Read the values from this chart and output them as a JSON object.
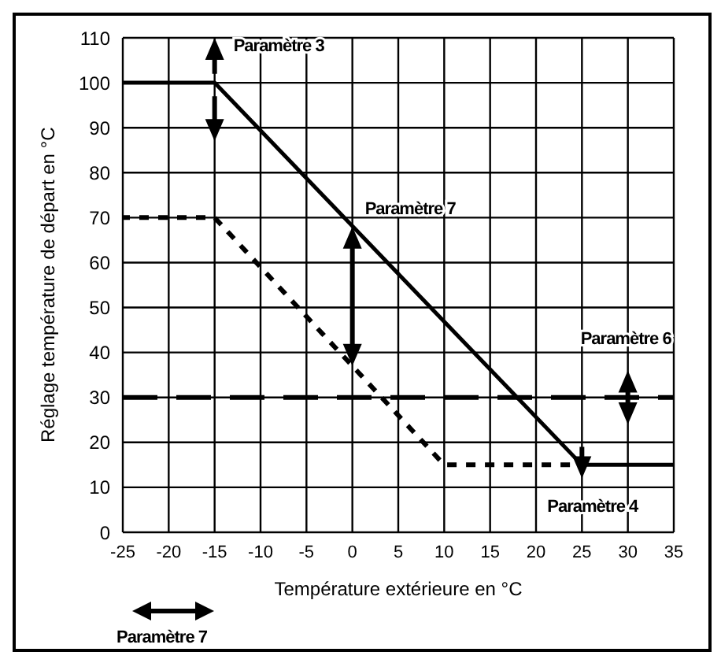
{
  "chart_data": {
    "type": "line",
    "xlabel": "Température extérieure en °C",
    "ylabel": "Réglage température de départ en °C",
    "xlim": [
      -25,
      35
    ],
    "xticks": [
      -25,
      -20,
      -15,
      -10,
      -5,
      0,
      5,
      10,
      15,
      20,
      25,
      30,
      35
    ],
    "ylim": [
      0,
      110
    ],
    "yticks": [
      0,
      10,
      20,
      30,
      40,
      50,
      60,
      70,
      80,
      90,
      100,
      110
    ],
    "grid": true,
    "legend": false,
    "marker": "none",
    "series": [
      {
        "color": "#000000",
        "line_style": "solid",
        "x": [
          -25,
          -15,
          25,
          35
        ],
        "values": [
          100,
          100,
          15,
          15
        ]
      },
      {
        "color": "#000000",
        "line_style": "dotted",
        "x": [
          -25,
          -15,
          10,
          25
        ],
        "values": [
          70,
          70,
          15,
          15
        ]
      }
    ],
    "ref_lines": [
      {
        "axis": "y",
        "value": 30,
        "color": "#000000",
        "line_style": "dashed"
      }
    ],
    "annotations": [
      {
        "text": "Paramètre 3",
        "x": -15,
        "y": 100
      },
      {
        "text": "Paramètre 7",
        "x": 0,
        "y": 70
      },
      {
        "text": "Paramètre 6",
        "x": 30,
        "y": 30
      },
      {
        "text": "Paramètre 4",
        "x": 25,
        "y": 15
      },
      "Paramètre 7"
    ]
  }
}
